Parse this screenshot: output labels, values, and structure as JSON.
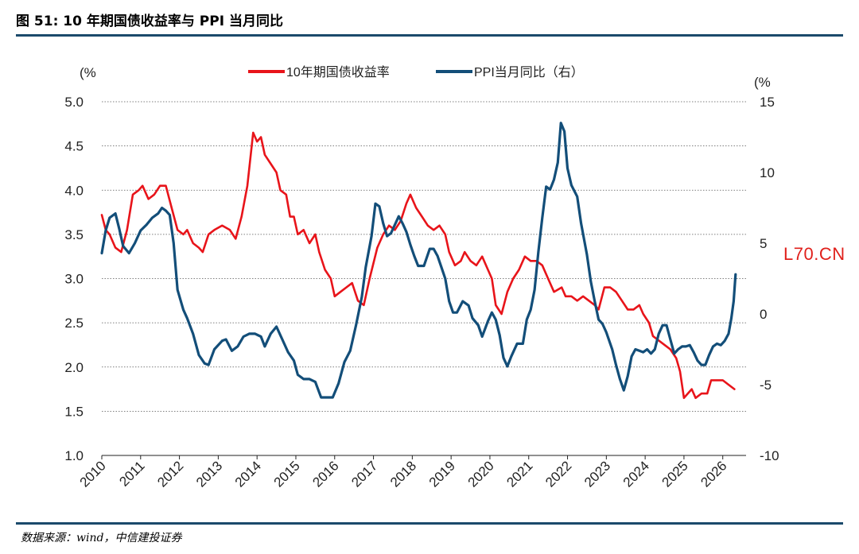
{
  "figure": {
    "title": "图 51: 10 年期国债收益率与 PPI 当月同比",
    "source": "数据来源：wind，中信建投证券",
    "watermark": "L70.CN"
  },
  "chart_data": {
    "type": "line",
    "left_unit_label": "(%",
    "right_unit_label": "(%",
    "left_axis": {
      "min": 1.0,
      "max": 5.0,
      "ticks": [
        "1.0",
        "1.5",
        "2.0",
        "2.5",
        "3.0",
        "3.5",
        "4.0",
        "4.5",
        "5.0"
      ]
    },
    "right_axis": {
      "min": -10,
      "max": 15,
      "ticks": [
        "-10",
        "-5",
        "0",
        "5",
        "10",
        "15"
      ]
    },
    "x_axis": {
      "min": 2010,
      "max": 2026.6,
      "ticks": [
        "2010",
        "2011",
        "2012",
        "2013",
        "2014",
        "2015",
        "2016",
        "2017",
        "2018",
        "2019",
        "2020",
        "2021",
        "2022",
        "2023",
        "2024",
        "2025",
        "2026"
      ]
    },
    "grid": true,
    "legend": "top-center",
    "series": [
      {
        "name": "10年期国债收益率",
        "axis": "left",
        "color": "#e8141a",
        "points": [
          [
            2010.0,
            3.72
          ],
          [
            2010.1,
            3.55
          ],
          [
            2010.2,
            3.5
          ],
          [
            2010.35,
            3.35
          ],
          [
            2010.5,
            3.3
          ],
          [
            2010.65,
            3.55
          ],
          [
            2010.8,
            3.95
          ],
          [
            2010.95,
            4.0
          ],
          [
            2011.05,
            4.05
          ],
          [
            2011.2,
            3.9
          ],
          [
            2011.35,
            3.95
          ],
          [
            2011.5,
            4.05
          ],
          [
            2011.65,
            4.05
          ],
          [
            2011.8,
            3.8
          ],
          [
            2011.95,
            3.55
          ],
          [
            2012.1,
            3.5
          ],
          [
            2012.2,
            3.55
          ],
          [
            2012.35,
            3.4
          ],
          [
            2012.5,
            3.35
          ],
          [
            2012.6,
            3.3
          ],
          [
            2012.75,
            3.5
          ],
          [
            2012.9,
            3.55
          ],
          [
            2013.1,
            3.6
          ],
          [
            2013.3,
            3.55
          ],
          [
            2013.45,
            3.45
          ],
          [
            2013.6,
            3.7
          ],
          [
            2013.75,
            4.05
          ],
          [
            2013.9,
            4.65
          ],
          [
            2014.0,
            4.55
          ],
          [
            2014.1,
            4.6
          ],
          [
            2014.2,
            4.4
          ],
          [
            2014.35,
            4.3
          ],
          [
            2014.5,
            4.2
          ],
          [
            2014.6,
            4.0
          ],
          [
            2014.75,
            3.95
          ],
          [
            2014.85,
            3.7
          ],
          [
            2014.95,
            3.7
          ],
          [
            2015.05,
            3.5
          ],
          [
            2015.2,
            3.55
          ],
          [
            2015.35,
            3.4
          ],
          [
            2015.5,
            3.5
          ],
          [
            2015.6,
            3.3
          ],
          [
            2015.75,
            3.1
          ],
          [
            2015.9,
            3.0
          ],
          [
            2016.0,
            2.8
          ],
          [
            2016.15,
            2.85
          ],
          [
            2016.3,
            2.9
          ],
          [
            2016.45,
            2.95
          ],
          [
            2016.6,
            2.75
          ],
          [
            2016.75,
            2.7
          ],
          [
            2016.9,
            3.0
          ],
          [
            2017.1,
            3.35
          ],
          [
            2017.25,
            3.5
          ],
          [
            2017.4,
            3.6
          ],
          [
            2017.55,
            3.55
          ],
          [
            2017.7,
            3.65
          ],
          [
            2017.85,
            3.85
          ],
          [
            2017.95,
            3.95
          ],
          [
            2018.1,
            3.8
          ],
          [
            2018.25,
            3.7
          ],
          [
            2018.4,
            3.6
          ],
          [
            2018.55,
            3.55
          ],
          [
            2018.7,
            3.6
          ],
          [
            2018.85,
            3.5
          ],
          [
            2018.95,
            3.3
          ],
          [
            2019.1,
            3.15
          ],
          [
            2019.25,
            3.2
          ],
          [
            2019.35,
            3.3
          ],
          [
            2019.5,
            3.2
          ],
          [
            2019.65,
            3.15
          ],
          [
            2019.8,
            3.25
          ],
          [
            2019.95,
            3.1
          ],
          [
            2020.05,
            3.0
          ],
          [
            2020.15,
            2.7
          ],
          [
            2020.3,
            2.6
          ],
          [
            2020.45,
            2.85
          ],
          [
            2020.6,
            3.0
          ],
          [
            2020.75,
            3.1
          ],
          [
            2020.9,
            3.25
          ],
          [
            2021.05,
            3.2
          ],
          [
            2021.2,
            3.2
          ],
          [
            2021.35,
            3.15
          ],
          [
            2021.5,
            3.0
          ],
          [
            2021.65,
            2.85
          ],
          [
            2021.85,
            2.9
          ],
          [
            2021.95,
            2.8
          ],
          [
            2022.1,
            2.8
          ],
          [
            2022.25,
            2.75
          ],
          [
            2022.4,
            2.8
          ],
          [
            2022.55,
            2.75
          ],
          [
            2022.7,
            2.7
          ],
          [
            2022.8,
            2.65
          ],
          [
            2022.95,
            2.9
          ],
          [
            2023.1,
            2.9
          ],
          [
            2023.25,
            2.85
          ],
          [
            2023.4,
            2.75
          ],
          [
            2023.55,
            2.65
          ],
          [
            2023.7,
            2.65
          ],
          [
            2023.85,
            2.7
          ],
          [
            2023.95,
            2.6
          ],
          [
            2024.1,
            2.5
          ],
          [
            2024.2,
            2.35
          ],
          [
            2024.35,
            2.3
          ],
          [
            2024.5,
            2.25
          ],
          [
            2024.65,
            2.2
          ],
          [
            2024.8,
            2.1
          ],
          [
            2024.9,
            1.95
          ],
          [
            2025.0,
            1.65
          ],
          [
            2025.1,
            1.7
          ],
          [
            2025.2,
            1.75
          ],
          [
            2025.3,
            1.65
          ],
          [
            2025.45,
            1.7
          ],
          [
            2025.6,
            1.7
          ],
          [
            2025.7,
            1.85
          ],
          [
            2025.85,
            1.85
          ],
          [
            2026.0,
            1.85
          ],
          [
            2026.15,
            1.8
          ],
          [
            2026.3,
            1.75
          ]
        ]
      },
      {
        "name": "PPI当月同比（右）",
        "axis": "right",
        "color": "#134e79",
        "points": [
          [
            2010.0,
            4.3
          ],
          [
            2010.1,
            5.9
          ],
          [
            2010.2,
            6.8
          ],
          [
            2010.35,
            7.1
          ],
          [
            2010.45,
            6.0
          ],
          [
            2010.55,
            4.8
          ],
          [
            2010.7,
            4.3
          ],
          [
            2010.85,
            5.0
          ],
          [
            2011.0,
            5.9
          ],
          [
            2011.15,
            6.3
          ],
          [
            2011.3,
            6.8
          ],
          [
            2011.45,
            7.1
          ],
          [
            2011.55,
            7.5
          ],
          [
            2011.65,
            7.3
          ],
          [
            2011.75,
            7.0
          ],
          [
            2011.85,
            5.0
          ],
          [
            2011.95,
            1.7
          ],
          [
            2012.1,
            0.3
          ],
          [
            2012.2,
            -0.3
          ],
          [
            2012.35,
            -1.4
          ],
          [
            2012.5,
            -2.9
          ],
          [
            2012.65,
            -3.5
          ],
          [
            2012.75,
            -3.6
          ],
          [
            2012.9,
            -2.5
          ],
          [
            2013.1,
            -1.9
          ],
          [
            2013.2,
            -1.8
          ],
          [
            2013.35,
            -2.6
          ],
          [
            2013.5,
            -2.3
          ],
          [
            2013.65,
            -1.6
          ],
          [
            2013.8,
            -1.4
          ],
          [
            2013.95,
            -1.4
          ],
          [
            2014.1,
            -1.6
          ],
          [
            2014.2,
            -2.3
          ],
          [
            2014.35,
            -1.4
          ],
          [
            2014.5,
            -0.9
          ],
          [
            2014.65,
            -1.8
          ],
          [
            2014.8,
            -2.7
          ],
          [
            2014.95,
            -3.3
          ],
          [
            2015.05,
            -4.3
          ],
          [
            2015.2,
            -4.6
          ],
          [
            2015.35,
            -4.6
          ],
          [
            2015.5,
            -4.8
          ],
          [
            2015.65,
            -5.9
          ],
          [
            2015.8,
            -5.9
          ],
          [
            2015.95,
            -5.9
          ],
          [
            2016.1,
            -4.9
          ],
          [
            2016.25,
            -3.4
          ],
          [
            2016.4,
            -2.6
          ],
          [
            2016.55,
            -0.8
          ],
          [
            2016.7,
            1.2
          ],
          [
            2016.8,
            3.3
          ],
          [
            2016.95,
            5.5
          ],
          [
            2017.05,
            7.8
          ],
          [
            2017.15,
            7.6
          ],
          [
            2017.25,
            6.4
          ],
          [
            2017.35,
            5.5
          ],
          [
            2017.45,
            5.7
          ],
          [
            2017.55,
            6.3
          ],
          [
            2017.65,
            6.9
          ],
          [
            2017.75,
            6.4
          ],
          [
            2017.85,
            5.8
          ],
          [
            2017.95,
            4.9
          ],
          [
            2018.05,
            4.1
          ],
          [
            2018.15,
            3.4
          ],
          [
            2018.3,
            3.4
          ],
          [
            2018.45,
            4.6
          ],
          [
            2018.55,
            4.6
          ],
          [
            2018.65,
            4.1
          ],
          [
            2018.75,
            3.3
          ],
          [
            2018.85,
            2.5
          ],
          [
            2018.95,
            0.9
          ],
          [
            2019.05,
            0.1
          ],
          [
            2019.15,
            0.1
          ],
          [
            2019.3,
            0.9
          ],
          [
            2019.45,
            0.6
          ],
          [
            2019.55,
            -0.3
          ],
          [
            2019.7,
            -0.8
          ],
          [
            2019.8,
            -1.6
          ],
          [
            2019.95,
            -0.5
          ],
          [
            2020.05,
            0.1
          ],
          [
            2020.15,
            -0.4
          ],
          [
            2020.25,
            -1.5
          ],
          [
            2020.35,
            -3.1
          ],
          [
            2020.45,
            -3.7
          ],
          [
            2020.55,
            -3.0
          ],
          [
            2020.7,
            -2.1
          ],
          [
            2020.85,
            -2.1
          ],
          [
            2020.95,
            -0.4
          ],
          [
            2021.05,
            0.3
          ],
          [
            2021.15,
            1.7
          ],
          [
            2021.25,
            4.4
          ],
          [
            2021.35,
            6.8
          ],
          [
            2021.45,
            9.0
          ],
          [
            2021.55,
            8.8
          ],
          [
            2021.65,
            9.5
          ],
          [
            2021.75,
            10.7
          ],
          [
            2021.83,
            13.5
          ],
          [
            2021.92,
            12.9
          ],
          [
            2022.0,
            10.3
          ],
          [
            2022.1,
            9.1
          ],
          [
            2022.25,
            8.3
          ],
          [
            2022.35,
            6.4
          ],
          [
            2022.5,
            4.2
          ],
          [
            2022.6,
            2.3
          ],
          [
            2022.7,
            0.9
          ],
          [
            2022.8,
            -0.4
          ],
          [
            2022.9,
            -0.7
          ],
          [
            2023.0,
            -1.3
          ],
          [
            2023.15,
            -2.5
          ],
          [
            2023.25,
            -3.6
          ],
          [
            2023.35,
            -4.6
          ],
          [
            2023.45,
            -5.4
          ],
          [
            2023.55,
            -4.4
          ],
          [
            2023.65,
            -3.0
          ],
          [
            2023.75,
            -2.5
          ],
          [
            2023.85,
            -2.6
          ],
          [
            2023.95,
            -2.7
          ],
          [
            2024.05,
            -2.5
          ],
          [
            2024.15,
            -2.8
          ],
          [
            2024.25,
            -2.5
          ],
          [
            2024.35,
            -1.4
          ],
          [
            2024.45,
            -0.8
          ],
          [
            2024.55,
            -0.8
          ],
          [
            2024.65,
            -1.8
          ],
          [
            2024.75,
            -2.8
          ],
          [
            2024.85,
            -2.5
          ],
          [
            2024.95,
            -2.3
          ],
          [
            2025.05,
            -2.3
          ],
          [
            2025.15,
            -2.2
          ],
          [
            2025.25,
            -2.7
          ],
          [
            2025.35,
            -3.3
          ],
          [
            2025.45,
            -3.6
          ],
          [
            2025.55,
            -3.6
          ],
          [
            2025.65,
            -2.9
          ],
          [
            2025.75,
            -2.3
          ],
          [
            2025.85,
            -2.1
          ],
          [
            2025.95,
            -2.2
          ],
          [
            2026.05,
            -1.9
          ],
          [
            2026.15,
            -1.4
          ],
          [
            2026.22,
            -0.3
          ],
          [
            2026.28,
            0.9
          ],
          [
            2026.33,
            2.8
          ]
        ]
      }
    ]
  }
}
